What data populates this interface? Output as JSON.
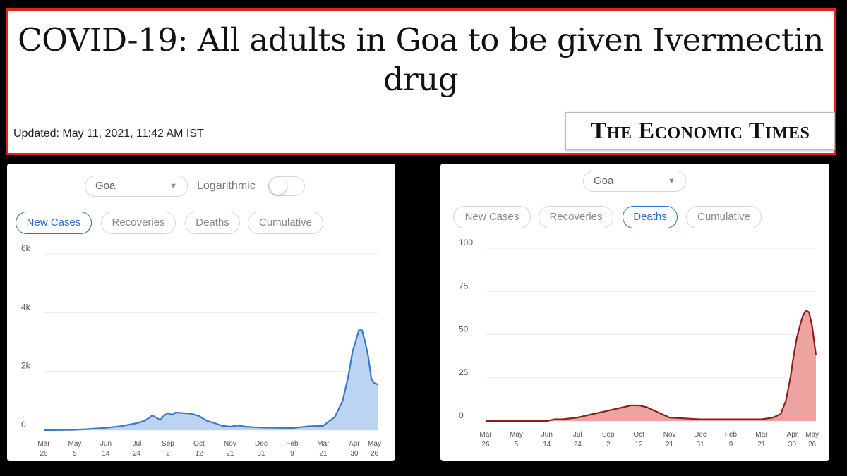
{
  "article": {
    "headline_line1": "COVID-19: All adults in Goa to be given Ivermectin",
    "headline_line2": "drug",
    "updated": "Updated: May 11, 2021, 11:42 AM IST",
    "publisher_logo": "The Economic Times"
  },
  "left_panel": {
    "region_select": "Goa",
    "toggle_label": "Logarithmic",
    "toggle_on": false,
    "tabs": [
      "New Cases",
      "Recoveries",
      "Deaths",
      "Cumulative"
    ],
    "active_tab": "New Cases"
  },
  "right_panel": {
    "region_select": "Goa",
    "tabs": [
      "New Cases",
      "Recoveries",
      "Deaths",
      "Cumulative"
    ],
    "active_tab": "Deaths"
  },
  "colors": {
    "cases_line": "#3a78c9",
    "cases_fill": "#bcd4f1",
    "deaths_line": "#8e1d1b",
    "deaths_fill": "#eda3a0",
    "active_tab": "#2d6fc4",
    "headline_border": "#e0211d"
  },
  "chart_data": [
    {
      "type": "area",
      "ylim": [
        0,
        6000
      ],
      "yticks": [
        "0",
        "2k",
        "4k",
        "6k"
      ],
      "ytick_values": [
        0,
        2000,
        4000,
        6000
      ],
      "x_ticks": [
        [
          "Mar",
          "26"
        ],
        [
          "May",
          "5"
        ],
        [
          "Jun",
          "14"
        ],
        [
          "Jul",
          "24"
        ],
        [
          "Sep",
          "2"
        ],
        [
          "Oct",
          "12"
        ],
        [
          "Nov",
          "21"
        ],
        [
          "Dec",
          "31"
        ],
        [
          "Feb",
          "9"
        ],
        [
          "Mar",
          "21"
        ],
        [
          "Apr",
          "30"
        ],
        [
          "May",
          "26"
        ]
      ],
      "x_tick_days": [
        0,
        40,
        80,
        120,
        160,
        200,
        240,
        280,
        320,
        360,
        400,
        426
      ],
      "x_range_days": [
        0,
        431
      ],
      "series": [
        {
          "x": [
            0,
            40,
            80,
            100,
            120,
            130,
            140,
            150,
            155,
            160,
            165,
            170,
            180,
            190,
            200,
            210,
            220,
            230,
            240,
            250,
            260,
            270,
            280,
            300,
            320,
            340,
            360,
            375,
            385,
            392,
            398,
            402,
            406,
            410,
            414,
            418,
            422,
            426,
            431
          ],
          "values": [
            0,
            10,
            80,
            140,
            240,
            320,
            500,
            350,
            500,
            580,
            520,
            600,
            580,
            560,
            480,
            320,
            240,
            150,
            120,
            160,
            120,
            100,
            90,
            80,
            70,
            130,
            150,
            450,
            1000,
            1800,
            2700,
            3050,
            3400,
            3400,
            3000,
            2500,
            1750,
            1600,
            1550
          ]
        }
      ]
    },
    {
      "type": "area",
      "ylim": [
        0,
        100
      ],
      "yticks": [
        "0",
        "25",
        "50",
        "75",
        "100"
      ],
      "ytick_values": [
        0,
        25,
        50,
        75,
        100
      ],
      "x_ticks": [
        [
          "Mar",
          "26"
        ],
        [
          "May",
          "5"
        ],
        [
          "Jun",
          "14"
        ],
        [
          "Jul",
          "24"
        ],
        [
          "Sep",
          "2"
        ],
        [
          "Oct",
          "12"
        ],
        [
          "Nov",
          "21"
        ],
        [
          "Dec",
          "31"
        ],
        [
          "Feb",
          "9"
        ],
        [
          "Mar",
          "21"
        ],
        [
          "Apr",
          "30"
        ],
        [
          "May",
          "26"
        ]
      ],
      "x_tick_days": [
        0,
        40,
        80,
        120,
        160,
        200,
        240,
        280,
        320,
        360,
        400,
        426
      ],
      "x_range_days": [
        0,
        431
      ],
      "series": [
        {
          "x": [
            0,
            80,
            90,
            100,
            120,
            140,
            160,
            170,
            180,
            190,
            200,
            210,
            220,
            230,
            240,
            260,
            280,
            300,
            320,
            340,
            360,
            375,
            385,
            392,
            398,
            402,
            406,
            410,
            414,
            418,
            422,
            426,
            431
          ],
          "values": [
            0,
            0,
            1,
            1,
            2,
            4,
            6,
            7,
            8,
            9,
            9,
            8,
            6,
            4,
            2,
            1.5,
            1,
            1,
            1,
            1,
            1,
            2,
            4,
            12,
            26,
            38,
            48,
            55,
            61,
            64,
            63,
            55,
            38
          ]
        }
      ]
    }
  ]
}
